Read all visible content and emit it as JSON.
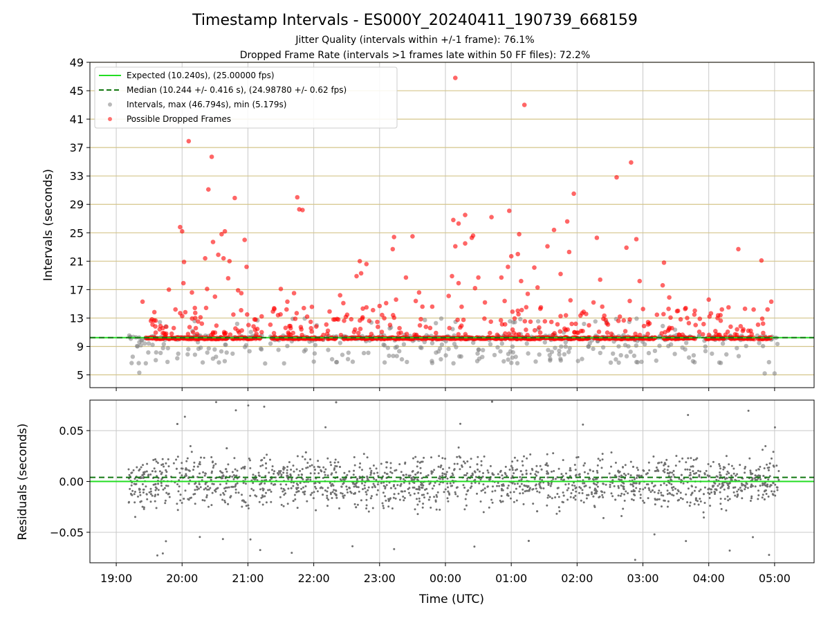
{
  "chart_data": [
    {
      "type": "scatter",
      "title": "Timestamp Intervals - ES000Y_20240411_190739_668159",
      "subtitle_lines": [
        "Jitter Quality (intervals within +/-1 frame): 76.1%",
        "Dropped Frame Rate (intervals >1 frames late within 50 FF files): 72.2%"
      ],
      "xlabel": "",
      "ylabel": "Intervals (seconds)",
      "ylim": [
        3.2,
        49
      ],
      "xlim_hours": [
        18.6,
        29.6
      ],
      "yticks": [
        5,
        9,
        13,
        17,
        21,
        25,
        29,
        33,
        37,
        41,
        45,
        49
      ],
      "grid": true,
      "legend_position": "top-left",
      "reference_lines": [
        {
          "name": "Expected (10.240s), (25.00000 fps)",
          "y": 10.24,
          "style": "solid",
          "color": "#22dd22"
        },
        {
          "name": "Median (10.244 +/- 0.416 s), (24.98780 +/- 0.62 fps)",
          "y": 10.244,
          "style": "dashed",
          "color": "#117711"
        }
      ],
      "series": [
        {
          "name": "Intervals, max (46.794s), min (5.179s)",
          "color": "#808080",
          "max": 46.794,
          "min": 5.179
        },
        {
          "name": "Possible Dropped Frames",
          "color": "#ff0000",
          "points": [
            [
              19.4,
              15.3
            ],
            [
              19.8,
              17
            ],
            [
              19.9,
              14.2
            ],
            [
              19.97,
              25.8
            ],
            [
              20.0,
              25.2
            ],
            [
              20.03,
              20.9
            ],
            [
              20.02,
              17.9
            ],
            [
              20.1,
              37.9
            ],
            [
              20.15,
              16.6
            ],
            [
              20.2,
              13
            ],
            [
              20.3,
              12.2
            ],
            [
              20.35,
              21.4
            ],
            [
              20.38,
              17.1
            ],
            [
              20.4,
              31.1
            ],
            [
              20.45,
              35.7
            ],
            [
              20.47,
              23.7
            ],
            [
              20.5,
              16
            ],
            [
              20.55,
              21.9
            ],
            [
              20.6,
              24.8
            ],
            [
              20.63,
              21.4
            ],
            [
              20.65,
              25.2
            ],
            [
              20.7,
              18.6
            ],
            [
              20.72,
              21
            ],
            [
              20.8,
              29.9
            ],
            [
              20.85,
              16.9
            ],
            [
              20.9,
              16.5
            ],
            [
              20.95,
              24
            ],
            [
              20.98,
              20.2
            ],
            [
              21.5,
              17.1
            ],
            [
              21.6,
              15.3
            ],
            [
              21.75,
              30
            ],
            [
              21.78,
              28.3
            ],
            [
              21.83,
              28.2
            ],
            [
              21.7,
              16.5
            ],
            [
              21.85,
              14.4
            ],
            [
              21.9,
              13.2
            ],
            [
              22.3,
              12.8
            ],
            [
              22.4,
              16.2
            ],
            [
              22.45,
              15.1
            ],
            [
              22.65,
              18.9
            ],
            [
              22.7,
              21
            ],
            [
              22.72,
              19.3
            ],
            [
              22.8,
              20.6
            ],
            [
              22.8,
              14.5
            ],
            [
              22.9,
              14.1
            ],
            [
              23.0,
              14.7
            ],
            [
              23.1,
              15.1
            ],
            [
              23.2,
              22.7
            ],
            [
              23.22,
              24.4
            ],
            [
              23.25,
              15.6
            ],
            [
              23.4,
              18.7
            ],
            [
              23.5,
              24.5
            ],
            [
              23.55,
              15.4
            ],
            [
              23.6,
              16.6
            ],
            [
              23.65,
              14.6
            ],
            [
              23.8,
              14.6
            ],
            [
              24.05,
              16.1
            ],
            [
              24.1,
              18.9
            ],
            [
              24.12,
              26.8
            ],
            [
              24.15,
              23.1
            ],
            [
              24.15,
              46.8
            ],
            [
              24.2,
              26.3
            ],
            [
              24.2,
              17.9
            ],
            [
              24.3,
              23.5
            ],
            [
              24.3,
              27.5
            ],
            [
              24.4,
              24.3
            ],
            [
              24.42,
              24.6
            ],
            [
              24.45,
              17.2
            ],
            [
              24.5,
              18.7
            ],
            [
              24.6,
              15.2
            ],
            [
              24.7,
              27.2
            ],
            [
              24.85,
              18.7
            ],
            [
              24.9,
              15.4
            ],
            [
              24.95,
              20.2
            ],
            [
              24.97,
              28.1
            ],
            [
              25.0,
              21.7
            ],
            [
              25.1,
              22
            ],
            [
              25.12,
              24.8
            ],
            [
              25.15,
              18.2
            ],
            [
              25.2,
              43
            ],
            [
              25.25,
              16.4
            ],
            [
              25.35,
              20.1
            ],
            [
              25.4,
              17.3
            ],
            [
              25.45,
              14.5
            ],
            [
              25.55,
              23.1
            ],
            [
              25.65,
              25.4
            ],
            [
              25.75,
              19.2
            ],
            [
              25.85,
              26.6
            ],
            [
              25.88,
              22.3
            ],
            [
              25.9,
              15.5
            ],
            [
              25.95,
              30.5
            ],
            [
              26.25,
              15.2
            ],
            [
              26.3,
              24.3
            ],
            [
              26.35,
              18.4
            ],
            [
              26.4,
              12.9
            ],
            [
              26.6,
              32.8
            ],
            [
              26.65,
              13.2
            ],
            [
              26.75,
              22.9
            ],
            [
              26.8,
              15.4
            ],
            [
              26.82,
              34.9
            ],
            [
              26.9,
              24.1
            ],
            [
              26.95,
              18.2
            ],
            [
              27.3,
              17.6
            ],
            [
              27.32,
              20.8
            ],
            [
              27.4,
              15.9
            ],
            [
              27.65,
              14.4
            ],
            [
              28.0,
              15.6
            ],
            [
              28.2,
              14.2
            ],
            [
              28.3,
              14.5
            ],
            [
              28.45,
              22.7
            ],
            [
              28.55,
              14.3
            ],
            [
              28.8,
              21.1
            ],
            [
              28.95,
              15.3
            ]
          ]
        }
      ]
    },
    {
      "type": "scatter",
      "xlabel": "Time (UTC)",
      "ylabel": "Residuals (seconds)",
      "ylim": [
        -0.08,
        0.08
      ],
      "yticks": [
        0.05,
        0.0,
        -0.05
      ],
      "ytick_labels": [
        "0.05",
        "0.00",
        "−0.05"
      ],
      "xticks": [
        19,
        20,
        21,
        22,
        23,
        24,
        25,
        26,
        27,
        28,
        29
      ],
      "xtick_labels": [
        "19:00",
        "20:00",
        "21:00",
        "22:00",
        "23:00",
        "00:00",
        "01:00",
        "02:00",
        "03:00",
        "04:00",
        "05:00"
      ],
      "grid": true,
      "reference_lines": [
        {
          "y": 0.0,
          "style": "solid",
          "color": "#22dd22"
        },
        {
          "y": 0.004,
          "style": "dashed",
          "color": "#117711"
        }
      ],
      "series": [
        {
          "color": "#808080",
          "spread": 0.02
        }
      ]
    }
  ]
}
